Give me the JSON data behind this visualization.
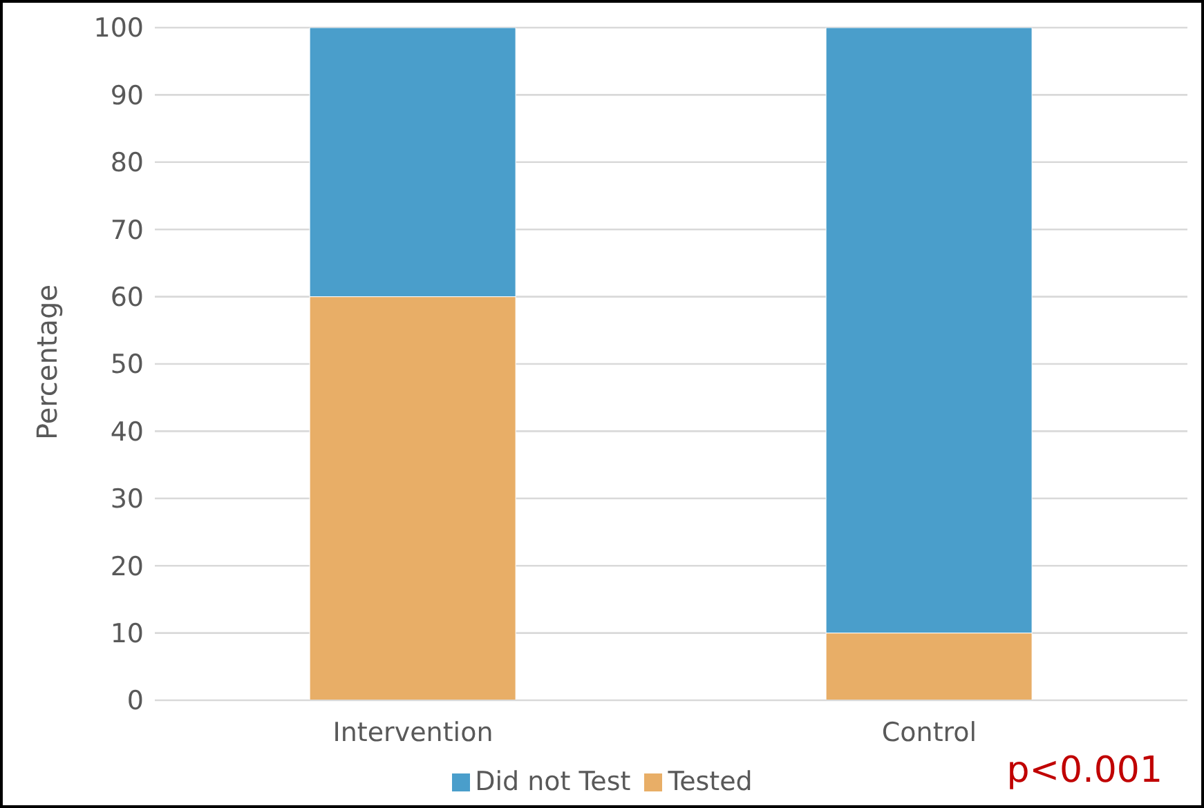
{
  "chart_data": {
    "type": "bar",
    "stacked": true,
    "ylabel": "Percentage",
    "categories": [
      "Intervention",
      "Control"
    ],
    "series": [
      {
        "name": "Tested",
        "color": "#e8ae67",
        "values": [
          60,
          10
        ]
      },
      {
        "name": "Did not Test",
        "color": "#4a9ecb",
        "values": [
          40,
          90
        ]
      }
    ],
    "ylim": [
      0,
      100
    ],
    "yticks": [
      0,
      10,
      20,
      30,
      40,
      50,
      60,
      70,
      80,
      90,
      100
    ],
    "grid": "y",
    "legend": "bottom",
    "annotations": [
      "p<0.001"
    ]
  }
}
